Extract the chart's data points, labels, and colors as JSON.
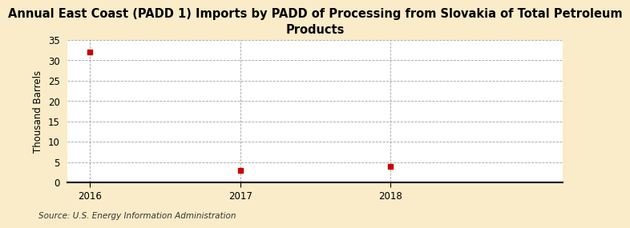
{
  "title": "Annual East Coast (PADD 1) Imports by PADD of Processing from Slovakia of Total Petroleum\nProducts",
  "ylabel": "Thousand Barrels",
  "source": "Source: U.S. Energy Information Administration",
  "x": [
    2016,
    2017,
    2018
  ],
  "y": [
    32,
    3,
    4
  ],
  "xlim": [
    2015.85,
    2019.15
  ],
  "ylim": [
    0,
    35
  ],
  "yticks": [
    0,
    5,
    10,
    15,
    20,
    25,
    30,
    35
  ],
  "xticks": [
    2016,
    2017,
    2018
  ],
  "background_color": "#faecc8",
  "plot_bg_color": "#ffffff",
  "marker_color": "#cc0000",
  "marker": "s",
  "marker_size": 4,
  "grid_color": "#999999",
  "title_fontsize": 10.5,
  "axis_fontsize": 8.5,
  "tick_fontsize": 8.5,
  "source_fontsize": 7.5
}
